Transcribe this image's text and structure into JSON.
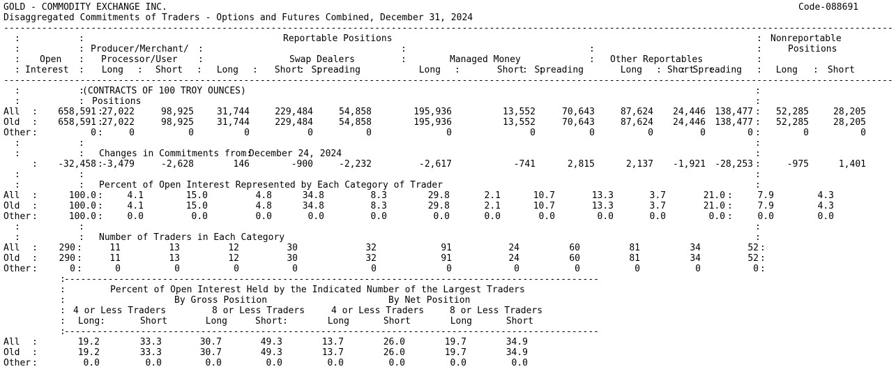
{
  "title": "GOLD - COMMODITY EXCHANGE INC.",
  "code": "Code-088691",
  "subtitle": "Disaggregated Commitments of Traders - Options and Futures Combined, December 31, 2024",
  "sep": ":",
  "header": {
    "reportable": "Reportable Positions",
    "nonreportable": "Nonreportable",
    "nonreportable2": "Positions",
    "open": "Open",
    "interest": "Interest",
    "producer1": "Producer/Merchant/",
    "producer2": "Processor/User",
    "swap": "Swap Dealers",
    "managed": "Managed Money",
    "other": "Other Reportables",
    "cols": [
      "Long",
      "Short",
      "Long",
      "Short",
      "Spreading",
      "Long",
      "Short",
      "Spreading",
      "Long",
      "Short",
      "Spreading",
      "Long",
      "Short"
    ]
  },
  "sections": {
    "positions": {
      "unit": "(CONTRACTS OF 100 TROY OUNCES)",
      "heading": "Positions",
      "rows": [
        {
          "label": "All",
          "oi": "658,591",
          "v": [
            "27,022",
            "98,925",
            "31,744",
            "229,484",
            "54,858",
            "195,936",
            "13,552",
            "70,643",
            "87,624",
            "24,446",
            "138,477",
            "52,285",
            "28,205"
          ]
        },
        {
          "label": "Old",
          "oi": "658,591",
          "v": [
            "27,022",
            "98,925",
            "31,744",
            "229,484",
            "54,858",
            "195,936",
            "13,552",
            "70,643",
            "87,624",
            "24,446",
            "138,477",
            "52,285",
            "28,205"
          ]
        },
        {
          "label": "Other",
          "oi": "0",
          "v": [
            "0",
            "0",
            "0",
            "0",
            "0",
            "0",
            "0",
            "0",
            "0",
            "0",
            "0",
            "0",
            "0"
          ]
        }
      ]
    },
    "changes": {
      "heading": "Changes in Commitments from:",
      "date": "December 24, 2024",
      "row": {
        "oi": "-32,458",
        "v": [
          "-3,479",
          "-2,628",
          "146",
          "-900",
          "-2,232",
          "-2,617",
          "-741",
          "2,815",
          "2,137",
          "-1,921",
          "-28,253",
          "-975",
          "1,401"
        ]
      }
    },
    "percent": {
      "heading": "Percent of Open Interest Represented by Each Category of Trader",
      "rows": [
        {
          "label": "All",
          "oi": "100.0",
          "v": [
            "4.1",
            "15.0",
            "4.8",
            "34.8",
            "8.3",
            "29.8",
            "2.1",
            "10.7",
            "13.3",
            "3.7",
            "21.0",
            "7.9",
            "4.3"
          ]
        },
        {
          "label": "Old",
          "oi": "100.0",
          "v": [
            "4.1",
            "15.0",
            "4.8",
            "34.8",
            "8.3",
            "29.8",
            "2.1",
            "10.7",
            "13.3",
            "3.7",
            "21.0",
            "7.9",
            "4.3"
          ]
        },
        {
          "label": "Other",
          "oi": "100.0",
          "v": [
            "0.0",
            "0.0",
            "0.0",
            "0.0",
            "0.0",
            "0.0",
            "0.0",
            "0.0",
            "0.0",
            "0.0",
            "0.0",
            "0.0",
            "0.0"
          ]
        }
      ]
    },
    "traders": {
      "heading": "Number of Traders in Each Category",
      "rows": [
        {
          "label": "All",
          "oi": "290",
          "v": [
            "11",
            "13",
            "12",
            "30",
            "32",
            "91",
            "24",
            "60",
            "81",
            "34",
            "52"
          ]
        },
        {
          "label": "Old",
          "oi": "290",
          "v": [
            "11",
            "13",
            "12",
            "30",
            "32",
            "91",
            "24",
            "60",
            "81",
            "34",
            "52"
          ]
        },
        {
          "label": "Other",
          "oi": "0",
          "v": [
            "0",
            "0",
            "0",
            "0",
            "0",
            "0",
            "0",
            "0",
            "0",
            "0",
            "0"
          ]
        }
      ]
    },
    "concentration": {
      "heading": "Percent of Open Interest Held by the Indicated Number of the Largest Traders",
      "group1": "By Gross Position",
      "group2": "By Net Position",
      "sub": [
        "4 or Less Traders",
        "8 or Less Traders",
        "4 or Less Traders",
        "8 or Less Traders"
      ],
      "cols": [
        "Long:",
        "Short",
        "Long",
        "Short:",
        "Long",
        "Short",
        "Long",
        "Short"
      ],
      "rows": [
        {
          "label": "All",
          "v": [
            "19.2",
            "33.3",
            "30.7",
            "49.3",
            "13.7",
            "26.0",
            "19.7",
            "34.9"
          ]
        },
        {
          "label": "Old",
          "v": [
            "19.2",
            "33.3",
            "30.7",
            "49.3",
            "13.7",
            "26.0",
            "19.7",
            "34.9"
          ]
        },
        {
          "label": "Other",
          "v": [
            "0.0",
            "0.0",
            "0.0",
            "0.0",
            "0.0",
            "0.0",
            "0.0",
            "0.0"
          ]
        }
      ]
    }
  }
}
